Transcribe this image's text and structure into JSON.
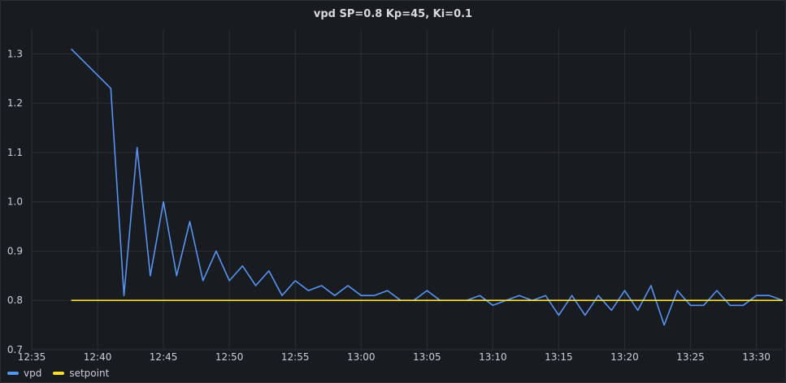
{
  "panel": {
    "title": "vpd SP=0.8 Kp=45, Ki=0.1"
  },
  "chart_data": {
    "type": "line",
    "title": "vpd SP=0.8 Kp=45, Ki=0.1",
    "xlabel": "",
    "ylabel": "",
    "x_unit": "time",
    "xlim": [
      "12:35",
      "13:32"
    ],
    "ylim": [
      0.7,
      1.35
    ],
    "x_ticks": [
      "12:35",
      "12:40",
      "12:45",
      "12:50",
      "12:55",
      "13:00",
      "13:05",
      "13:10",
      "13:15",
      "13:20",
      "13:25",
      "13:30"
    ],
    "y_ticks": [
      "0.7",
      "0.8",
      "0.9",
      "1.0",
      "1.1",
      "1.2",
      "1.3"
    ],
    "grid": true,
    "legend": "bottom-left",
    "series": [
      {
        "name": "vpd",
        "color": "#5794f2",
        "points": [
          [
            "12:38",
            1.31
          ],
          [
            "12:41",
            1.23
          ],
          [
            "12:42",
            0.81
          ],
          [
            "12:43",
            1.11
          ],
          [
            "12:44",
            0.85
          ],
          [
            "12:45",
            1.0
          ],
          [
            "12:46",
            0.85
          ],
          [
            "12:47",
            0.96
          ],
          [
            "12:48",
            0.84
          ],
          [
            "12:49",
            0.9
          ],
          [
            "12:50",
            0.84
          ],
          [
            "12:51",
            0.87
          ],
          [
            "12:52",
            0.83
          ],
          [
            "12:53",
            0.86
          ],
          [
            "12:54",
            0.81
          ],
          [
            "12:55",
            0.84
          ],
          [
            "12:56",
            0.82
          ],
          [
            "12:57",
            0.83
          ],
          [
            "12:58",
            0.81
          ],
          [
            "12:59",
            0.83
          ],
          [
            "13:00",
            0.81
          ],
          [
            "13:01",
            0.81
          ],
          [
            "13:02",
            0.82
          ],
          [
            "13:03",
            0.8
          ],
          [
            "13:04",
            0.8
          ],
          [
            "13:05",
            0.82
          ],
          [
            "13:06",
            0.8
          ],
          [
            "13:07",
            0.8
          ],
          [
            "13:08",
            0.8
          ],
          [
            "13:09",
            0.81
          ],
          [
            "13:10",
            0.79
          ],
          [
            "13:11",
            0.8
          ],
          [
            "13:12",
            0.81
          ],
          [
            "13:13",
            0.8
          ],
          [
            "13:14",
            0.81
          ],
          [
            "13:15",
            0.77
          ],
          [
            "13:16",
            0.81
          ],
          [
            "13:17",
            0.77
          ],
          [
            "13:18",
            0.81
          ],
          [
            "13:19",
            0.78
          ],
          [
            "13:20",
            0.82
          ],
          [
            "13:21",
            0.78
          ],
          [
            "13:22",
            0.83
          ],
          [
            "13:23",
            0.75
          ],
          [
            "13:24",
            0.82
          ],
          [
            "13:25",
            0.79
          ],
          [
            "13:26",
            0.79
          ],
          [
            "13:27",
            0.82
          ],
          [
            "13:28",
            0.79
          ],
          [
            "13:29",
            0.79
          ],
          [
            "13:30",
            0.81
          ],
          [
            "13:31",
            0.81
          ],
          [
            "13:32",
            0.8
          ]
        ]
      },
      {
        "name": "setpoint",
        "color": "#fade2a",
        "points": [
          [
            "12:38",
            0.8
          ],
          [
            "13:32",
            0.8
          ]
        ]
      }
    ]
  }
}
